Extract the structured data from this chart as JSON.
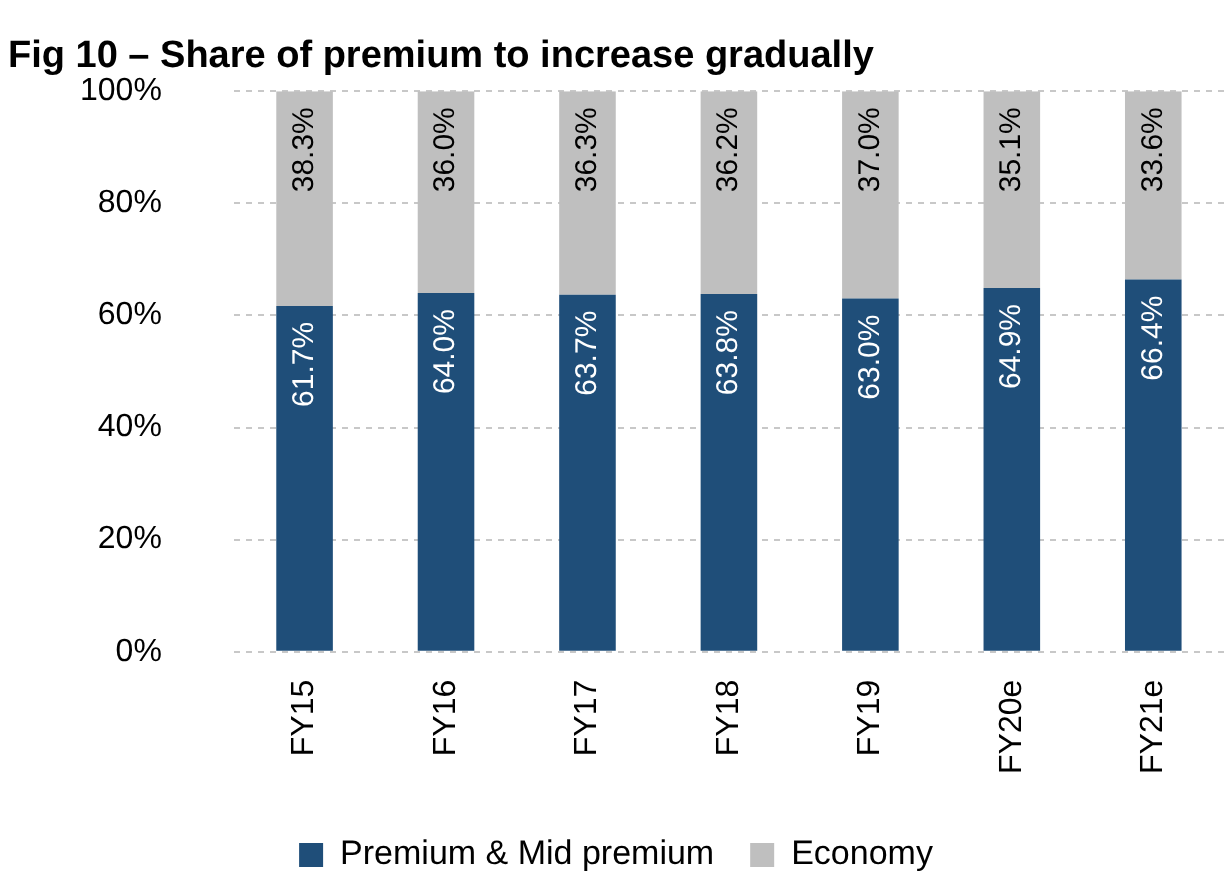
{
  "chart_data": {
    "type": "bar",
    "title": "Fig 10 – Share of premium to increase gradually",
    "stacked": true,
    "categories": [
      "FY15",
      "FY16",
      "FY17",
      "FY18",
      "FY19",
      "FY20e",
      "FY21e"
    ],
    "series": [
      {
        "name": "Premium & Mid premium",
        "color": "#1f4e79",
        "values": [
          61.7,
          64.0,
          63.7,
          63.8,
          63.0,
          64.9,
          66.4
        ],
        "value_labels": [
          "61.7%",
          "64.0%",
          "63.7%",
          "63.8%",
          "63.0%",
          "64.9%",
          "66.4%"
        ]
      },
      {
        "name": "Economy",
        "color": "#bfbfbf",
        "values": [
          38.3,
          36.0,
          36.3,
          36.2,
          37.0,
          35.1,
          33.6
        ],
        "value_labels": [
          "38.3%",
          "36.0%",
          "36.3%",
          "36.2%",
          "37.0%",
          "35.1%",
          "33.6%"
        ]
      }
    ],
    "ylim": [
      0,
      100
    ],
    "yticks": [
      {
        "value": 0,
        "label": "0%"
      },
      {
        "value": 20,
        "label": "20%"
      },
      {
        "value": 40,
        "label": "40%"
      },
      {
        "value": 60,
        "label": "60%"
      },
      {
        "value": 80,
        "label": "80%"
      },
      {
        "value": 100,
        "label": "100%"
      }
    ],
    "grid": "y",
    "legend": "bottom"
  }
}
